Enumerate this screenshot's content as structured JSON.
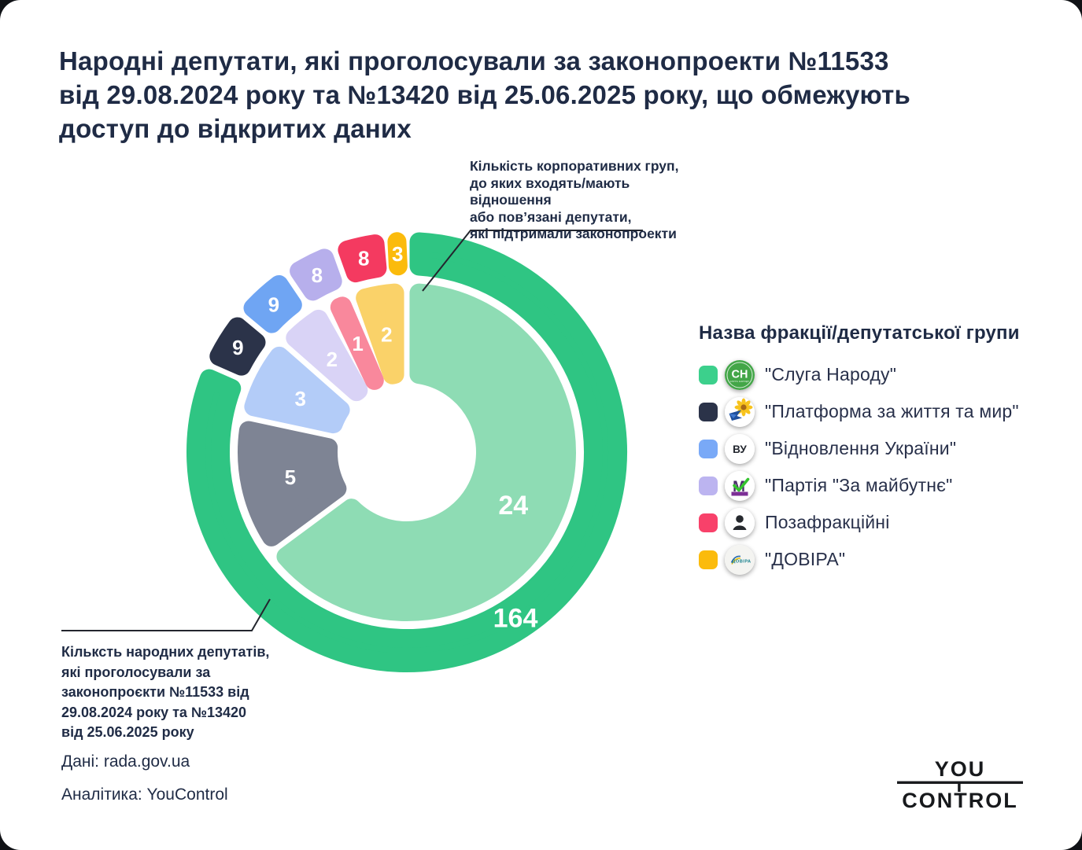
{
  "title": "Народні депутати, які проголосували за законопроекти №11533\nвід 29.08.2024 року та №13420 від 25.06.2025 року, що обмежують\nдоступ до відкритих даних",
  "annotations": {
    "top": "Кількість корпоративних груп,\nдо яких входять/мають відношення\nабо пов’язані депутати,\nякі підтримали законопроекти",
    "bottom": "Кільксть народних депутатів,\nякі проголосували за\nзаконопроєкти №11533 від\n29.08.2024 року та №13420\nвід 25.06.2025 року"
  },
  "legend": {
    "header": "Назва фракції/депутатської групи",
    "items": [
      {
        "label": "\"Слуга Народу\"",
        "swatch": "#3CD08C",
        "logo": "sluha-narodu-logo"
      },
      {
        "label": "\"Платформа за життя та мир\"",
        "swatch": "#2B3349",
        "logo": "platforma-logo"
      },
      {
        "label": "\"Відновлення України\"",
        "swatch": "#79A9F7",
        "logo": "vidnovlennia-logo"
      },
      {
        "label": "\"Партія \"За майбутнє\"",
        "swatch": "#BCB4F0",
        "logo": "za-maibutnie-logo"
      },
      {
        "label": "Позафракційні",
        "swatch": "#F8416A",
        "logo": "non-faction-logo"
      },
      {
        "label": "\"ДОВІРА\"",
        "swatch": "#FBBB0C",
        "logo": "dovira-logo"
      }
    ]
  },
  "chart_data": {
    "type": "donut",
    "direction": "clockwise",
    "start_angle_deg": 0,
    "categories": [
      "Слуга Народу",
      "Платформа за життя та мир",
      "Відновлення України",
      "Партія За майбутнє",
      "Позафракційні",
      "ДОВІРА"
    ],
    "series": [
      {
        "name": "Кількість народних депутатів, які проголосували за законопроєкти №11533 та №13420",
        "ring": "outer",
        "values": [
          164,
          9,
          9,
          8,
          8,
          3
        ],
        "colors": [
          "#2FC583",
          "#2B3349",
          "#6FA5F3",
          "#B7AFEC",
          "#F43A60",
          "#FBBB0C"
        ]
      },
      {
        "name": "Кількість корпоративних груп, до яких входять/мають відношення або пов’язані депутати",
        "ring": "inner",
        "values": [
          24,
          5,
          3,
          2,
          1,
          2
        ],
        "colors": [
          "#8EDCB4",
          "#7E8494",
          "#B3CCF8",
          "#D9D3F6",
          "#F9889C",
          "#FAD269"
        ]
      }
    ],
    "label_color": "#FFFFFF",
    "legend_position": "right"
  },
  "footer": {
    "source": "Дані: rada.gov.ua",
    "analytics": "Аналітика: YouControl"
  },
  "brand_logo": {
    "top": "YOU",
    "bottom": "CONTROL"
  }
}
